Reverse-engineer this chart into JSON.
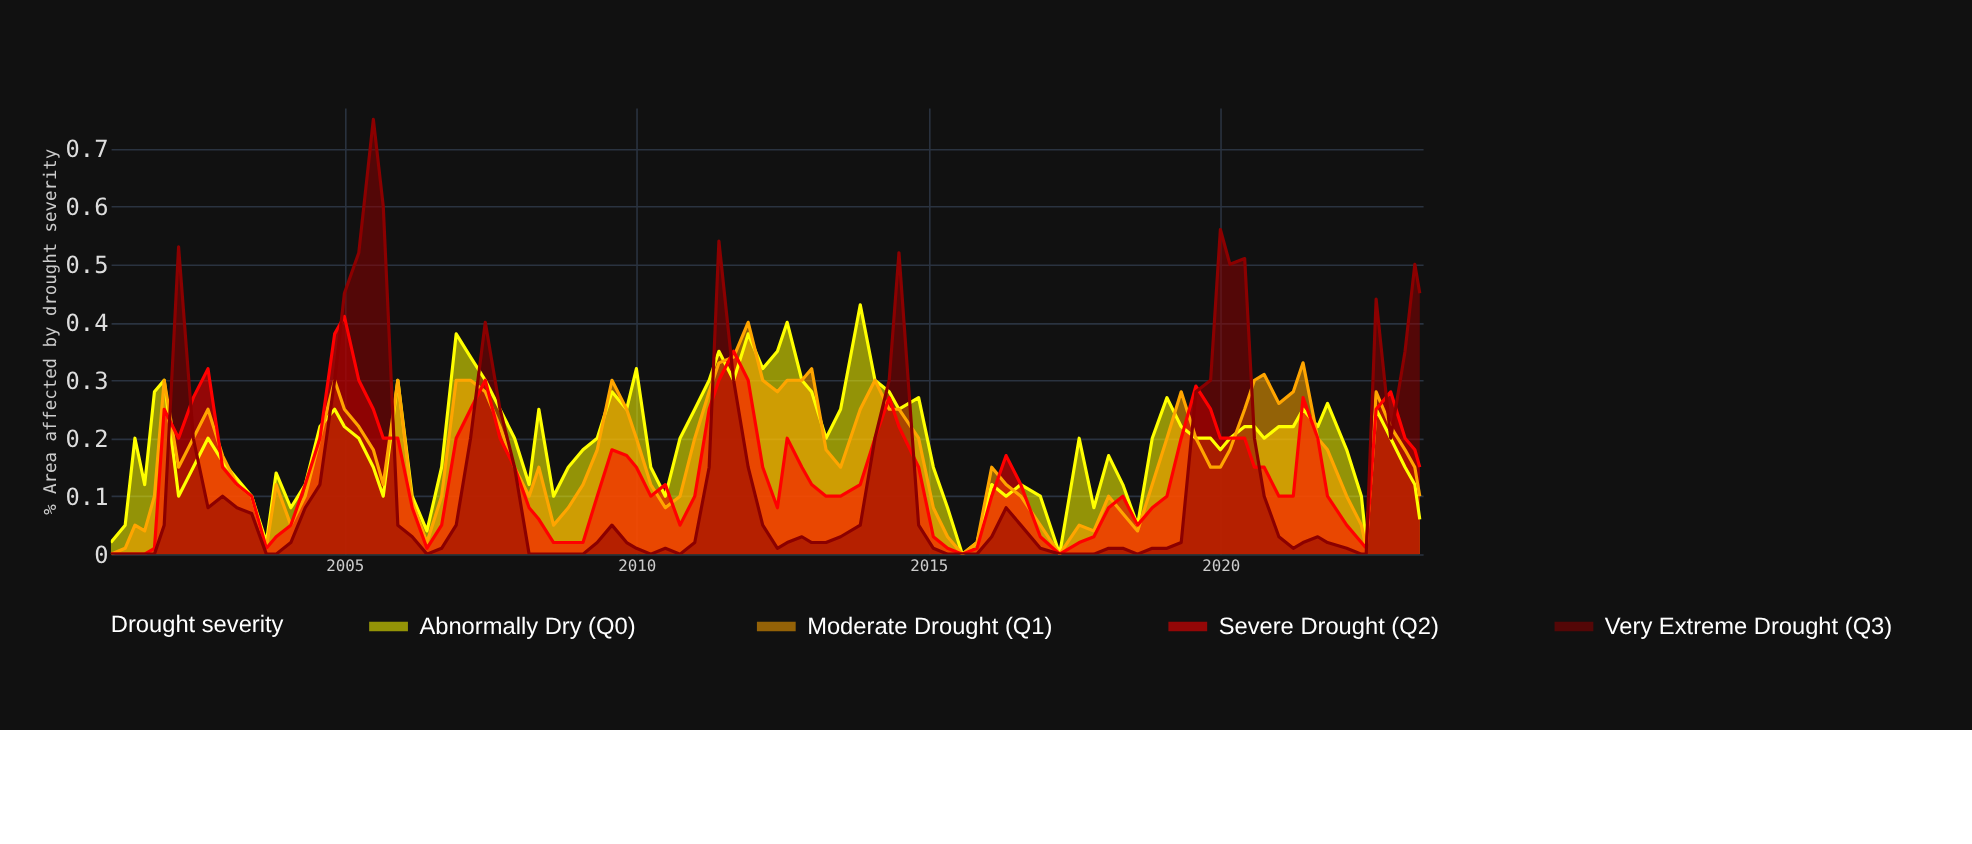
{
  "chart_data": {
    "type": "area",
    "ylabel": "% Area affected by drought severity",
    "legend_title": "Drought severity",
    "legend": "bottom",
    "grid": true,
    "xlim": [
      "2001-01-01",
      "2023-06-20"
    ],
    "xticks": [
      "2005",
      "2010",
      "2015",
      "2020"
    ],
    "ylim": [
      0,
      0.77
    ],
    "yticks": [
      0,
      0.1,
      0.2,
      0.3,
      0.4,
      0.5,
      0.6,
      0.7
    ],
    "x": [
      "2001-01",
      "2001-04",
      "2001-06",
      "2001-08",
      "2001-10",
      "2001-12",
      "2002-03",
      "2002-06",
      "2002-09",
      "2002-12",
      "2003-03",
      "2003-06",
      "2003-09",
      "2003-11",
      "2004-02",
      "2004-05",
      "2004-08",
      "2004-11",
      "2005-01",
      "2005-04",
      "2005-07",
      "2005-09",
      "2005-12",
      "2006-03",
      "2006-06",
      "2006-09",
      "2006-12",
      "2007-03",
      "2007-06",
      "2007-09",
      "2007-12",
      "2008-03",
      "2008-05",
      "2008-08",
      "2008-11",
      "2009-02",
      "2009-05",
      "2009-08",
      "2009-11",
      "2010-01",
      "2010-04",
      "2010-07",
      "2010-10",
      "2011-01",
      "2011-04",
      "2011-06",
      "2011-09",
      "2011-12",
      "2012-03",
      "2012-06",
      "2012-08",
      "2012-11",
      "2013-01",
      "2013-04",
      "2013-07",
      "2013-11",
      "2014-02",
      "2014-05",
      "2014-07",
      "2014-11",
      "2015-02",
      "2015-05",
      "2015-08",
      "2015-11",
      "2016-02",
      "2016-05",
      "2016-08",
      "2016-12",
      "2017-04",
      "2017-08",
      "2017-11",
      "2018-02",
      "2018-05",
      "2018-08",
      "2018-11",
      "2019-02",
      "2019-05",
      "2019-08",
      "2019-11",
      "2020-01",
      "2020-03",
      "2020-06",
      "2020-08",
      "2020-10",
      "2021-01",
      "2021-04",
      "2021-06",
      "2021-09",
      "2021-11",
      "2022-03",
      "2022-06",
      "2022-07",
      "2022-09",
      "2022-12",
      "2023-03",
      "2023-05",
      "2023-06"
    ],
    "series": [
      {
        "name": "Abnormally Dry  (Q0)",
        "color": "#ffff00",
        "values": [
          0.02,
          0.05,
          0.2,
          0.12,
          0.28,
          0.3,
          0.1,
          0.15,
          0.2,
          0.16,
          0.13,
          0.1,
          0.02,
          0.14,
          0.08,
          0.12,
          0.22,
          0.25,
          0.22,
          0.2,
          0.15,
          0.1,
          0.3,
          0.1,
          0.04,
          0.15,
          0.38,
          0.34,
          0.3,
          0.25,
          0.2,
          0.12,
          0.25,
          0.1,
          0.15,
          0.18,
          0.2,
          0.28,
          0.25,
          0.32,
          0.15,
          0.1,
          0.2,
          0.25,
          0.3,
          0.35,
          0.3,
          0.38,
          0.32,
          0.35,
          0.4,
          0.3,
          0.28,
          0.2,
          0.25,
          0.43,
          0.3,
          0.28,
          0.25,
          0.27,
          0.15,
          0.08,
          0,
          0.02,
          0.12,
          0.1,
          0.12,
          0.1,
          0,
          0.2,
          0.08,
          0.17,
          0.12,
          0.05,
          0.2,
          0.27,
          0.22,
          0.2,
          0.2,
          0.18,
          0.2,
          0.22,
          0.22,
          0.2,
          0.22,
          0.22,
          0.25,
          0.22,
          0.26,
          0.18,
          0.1,
          0.02,
          0.25,
          0.2,
          0.15,
          0.12,
          0.06
        ]
      },
      {
        "name": "Moderate Drought (Q1)",
        "color": "#ffa500",
        "values": [
          0,
          0.01,
          0.05,
          0.04,
          0.1,
          0.3,
          0.15,
          0.2,
          0.25,
          0.17,
          0.12,
          0.1,
          0.01,
          0.12,
          0.05,
          0.1,
          0.2,
          0.3,
          0.25,
          0.22,
          0.18,
          0.12,
          0.3,
          0.09,
          0.02,
          0.1,
          0.3,
          0.3,
          0.28,
          0.22,
          0.15,
          0.1,
          0.15,
          0.05,
          0.08,
          0.12,
          0.18,
          0.3,
          0.25,
          0.2,
          0.12,
          0.08,
          0.1,
          0.2,
          0.28,
          0.33,
          0.34,
          0.4,
          0.3,
          0.28,
          0.3,
          0.3,
          0.32,
          0.18,
          0.15,
          0.25,
          0.3,
          0.25,
          0.25,
          0.2,
          0.08,
          0.03,
          0,
          0.02,
          0.15,
          0.12,
          0.1,
          0.05,
          0,
          0.05,
          0.04,
          0.1,
          0.07,
          0.04,
          0.12,
          0.2,
          0.28,
          0.2,
          0.15,
          0.15,
          0.18,
          0.25,
          0.3,
          0.31,
          0.26,
          0.28,
          0.33,
          0.2,
          0.18,
          0.1,
          0.05,
          0.01,
          0.28,
          0.22,
          0.18,
          0.15,
          0.1
        ]
      },
      {
        "name": "Severe Drought (Q2)",
        "color": "#ff0000",
        "values": [
          0,
          0,
          0,
          0,
          0.01,
          0.25,
          0.2,
          0.27,
          0.32,
          0.15,
          0.12,
          0.1,
          0.01,
          0.03,
          0.05,
          0.12,
          0.2,
          0.38,
          0.41,
          0.3,
          0.25,
          0.2,
          0.2,
          0.08,
          0.01,
          0.05,
          0.2,
          0.25,
          0.3,
          0.2,
          0.15,
          0.08,
          0.06,
          0.02,
          0.02,
          0.02,
          0.1,
          0.18,
          0.17,
          0.15,
          0.1,
          0.12,
          0.05,
          0.1,
          0.25,
          0.3,
          0.35,
          0.3,
          0.15,
          0.08,
          0.2,
          0.15,
          0.12,
          0.1,
          0.1,
          0.12,
          0.2,
          0.27,
          0.22,
          0.15,
          0.03,
          0.01,
          0,
          0.01,
          0.1,
          0.17,
          0.12,
          0.03,
          0,
          0.02,
          0.03,
          0.08,
          0.1,
          0.05,
          0.08,
          0.1,
          0.2,
          0.29,
          0.25,
          0.2,
          0.2,
          0.2,
          0.15,
          0.15,
          0.1,
          0.1,
          0.27,
          0.2,
          0.1,
          0.05,
          0.02,
          0.01,
          0.25,
          0.28,
          0.2,
          0.18,
          0.15
        ]
      },
      {
        "name": "Very Extreme Drought (Q3)",
        "color": "#8b0000",
        "values": [
          0,
          0,
          0,
          0,
          0,
          0.05,
          0.53,
          0.2,
          0.08,
          0.1,
          0.08,
          0.07,
          0,
          0,
          0.02,
          0.08,
          0.12,
          0.3,
          0.45,
          0.52,
          0.75,
          0.6,
          0.05,
          0.03,
          0,
          0.01,
          0.05,
          0.2,
          0.4,
          0.25,
          0.15,
          0,
          0,
          0,
          0,
          0,
          0.02,
          0.05,
          0.02,
          0.01,
          0,
          0.01,
          0,
          0.02,
          0.15,
          0.54,
          0.3,
          0.15,
          0.05,
          0.01,
          0.02,
          0.03,
          0.02,
          0.02,
          0.03,
          0.05,
          0.2,
          0.3,
          0.52,
          0.05,
          0.01,
          0,
          0,
          0,
          0.03,
          0.08,
          0.05,
          0.01,
          0,
          0,
          0,
          0.01,
          0.01,
          0,
          0.01,
          0.01,
          0.02,
          0.28,
          0.3,
          0.56,
          0.5,
          0.51,
          0.2,
          0.1,
          0.03,
          0.01,
          0.02,
          0.03,
          0.02,
          0.01,
          0,
          0,
          0.44,
          0.2,
          0.35,
          0.5,
          0.45
        ]
      }
    ]
  }
}
